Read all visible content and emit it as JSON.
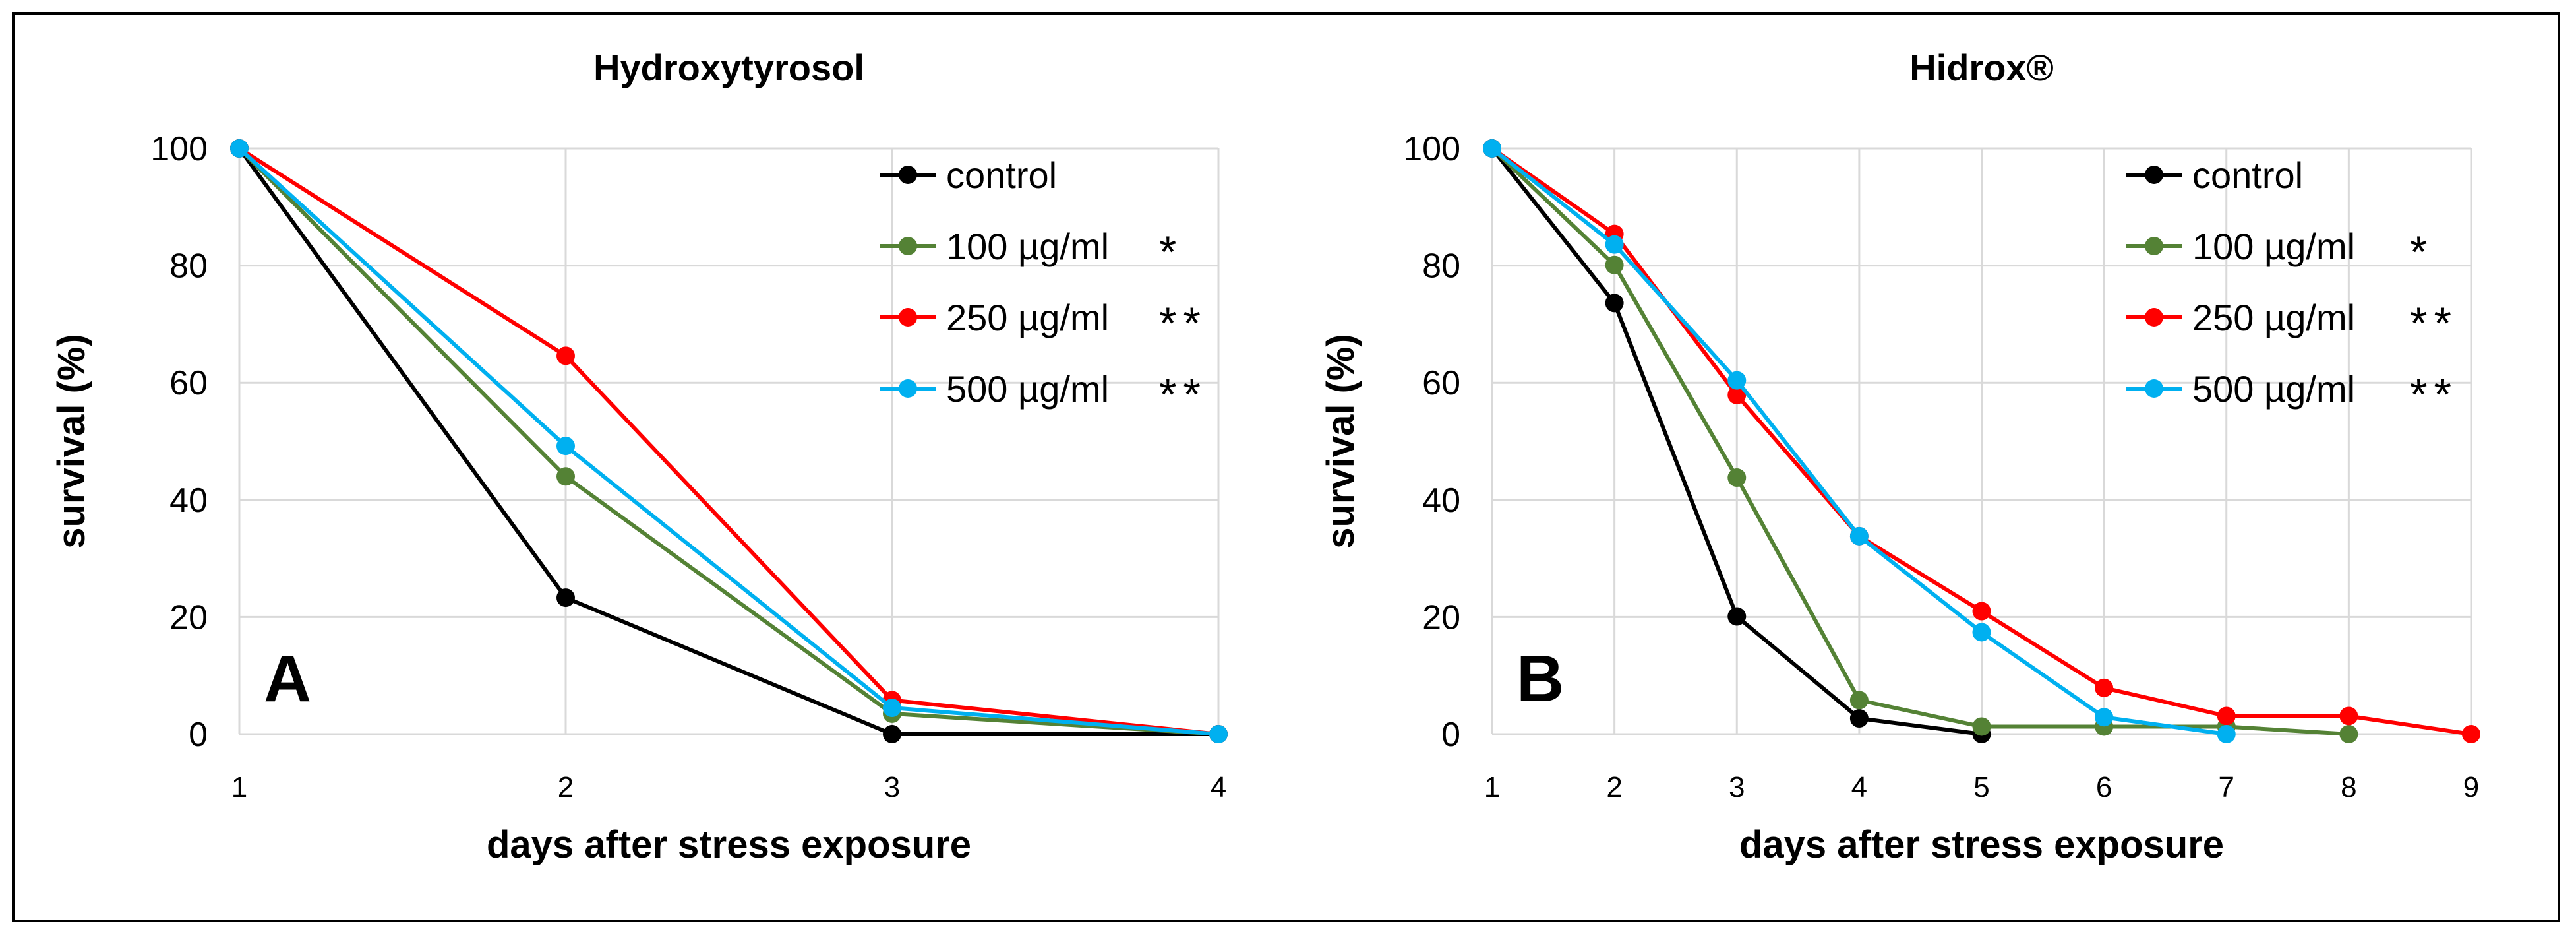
{
  "chart_data": [
    {
      "type": "line",
      "title": "Hydroxytyrosol",
      "panel_label": "A",
      "xlabel": "days after stress exposure",
      "ylabel": "survival (%)",
      "x": [
        1,
        2,
        3,
        4
      ],
      "xlim": [
        1,
        4
      ],
      "ylim": [
        0,
        100
      ],
      "yticks": [
        0,
        20,
        40,
        60,
        80,
        100
      ],
      "grid": true,
      "legend_position": "top-right",
      "series": [
        {
          "name": "control",
          "marker": "",
          "color": "#000000",
          "values": [
            100,
            23.3,
            0,
            0
          ]
        },
        {
          "name": "100 µg/ml",
          "marker": "*",
          "color": "#548235",
          "values": [
            100,
            44,
            3.5,
            0
          ]
        },
        {
          "name": "250 µg/ml",
          "marker": "**",
          "color": "#FF0000",
          "values": [
            100,
            64.6,
            5.8,
            0
          ]
        },
        {
          "name": "500 µg/ml",
          "marker": "**",
          "color": "#00B0F0",
          "values": [
            100,
            49.2,
            4.5,
            0
          ]
        }
      ]
    },
    {
      "type": "line",
      "title": "Hidrox®",
      "panel_label": "B",
      "xlabel": "days after stress exposure",
      "ylabel": "survival (%)",
      "x": [
        1,
        2,
        3,
        4,
        5,
        6,
        7,
        8,
        9
      ],
      "xlim": [
        1,
        9
      ],
      "ylim": [
        0,
        100
      ],
      "yticks": [
        0,
        20,
        40,
        60,
        80,
        100
      ],
      "grid": true,
      "legend_position": "top-right",
      "series": [
        {
          "name": "control",
          "marker": "",
          "color": "#000000",
          "values": [
            100,
            73.6,
            20.1,
            2.7,
            0,
            null,
            null,
            null,
            null
          ]
        },
        {
          "name": "100 µg/ml",
          "marker": "*",
          "color": "#548235",
          "values": [
            100,
            80.1,
            43.8,
            5.8,
            1.3,
            1.3,
            1.3,
            0,
            null
          ]
        },
        {
          "name": "250 µg/ml",
          "marker": "**",
          "color": "#FF0000",
          "values": [
            100,
            85.4,
            57.9,
            33.8,
            21,
            7.9,
            3.1,
            3.1,
            0
          ]
        },
        {
          "name": "500 µg/ml",
          "marker": "**",
          "color": "#00B0F0",
          "values": [
            100,
            83.6,
            60.4,
            33.8,
            17.4,
            2.9,
            0,
            null,
            null
          ]
        }
      ]
    }
  ]
}
